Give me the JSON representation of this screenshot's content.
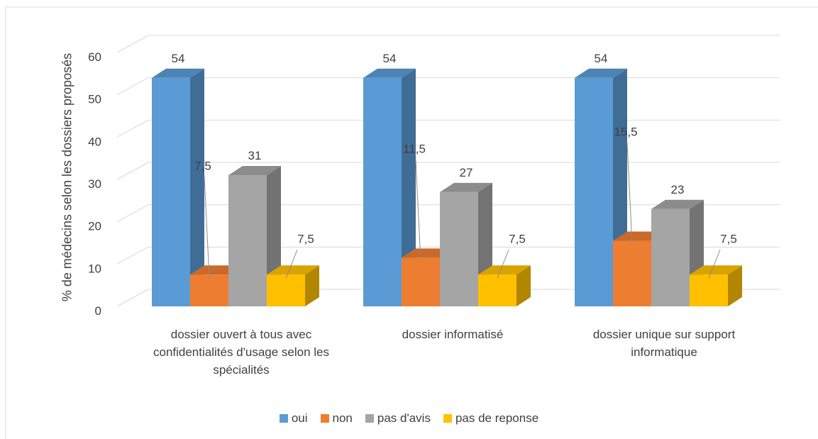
{
  "chart_data": {
    "type": "bar3d",
    "y_label": "% de médecins selon les dossiers proposés",
    "categories": [
      "dossier ouvert à tous avec confidentialités d'usage selon les spécialités",
      "dossier informatisé",
      "dossier unique sur support informatique"
    ],
    "series": [
      {
        "name": "oui",
        "color": "#5b9bd5",
        "values": [
          54,
          54,
          54
        ]
      },
      {
        "name": "non",
        "color": "#ed7d31",
        "values": [
          7.5,
          11.5,
          15.5
        ],
        "value_labels": [
          "7,5",
          "11,5",
          "15,5"
        ]
      },
      {
        "name": "pas d'avis",
        "color": "#a5a5a5",
        "values": [
          31,
          27,
          23
        ]
      },
      {
        "name": "pas de reponse",
        "color": "#ffc000",
        "values": [
          7.5,
          7.5,
          7.5
        ],
        "value_labels": [
          "7,5",
          "7,5",
          "7,5"
        ]
      }
    ],
    "ylim": [
      0,
      60
    ],
    "yticks": [
      0,
      10,
      20,
      30,
      40,
      50,
      60
    ],
    "grid": true,
    "legend": "bottom"
  }
}
